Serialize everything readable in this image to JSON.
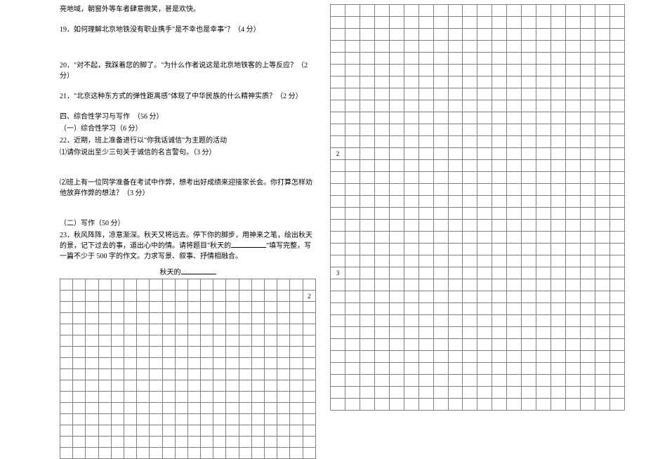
{
  "left": {
    "top_line": "亮地域，朝窗外等车者肆意微笑，甚是欢快。",
    "q19": "19．如何理解北京地铁没有职业携手\"是不幸也是幸事\"？（4 分）",
    "q20": "20．\"对不起，我踩着您的脚了。\"为什么作者说这是北京地铁客的上等反应？（2 分）",
    "q21": "21．\"北京这种东方式的弹性距离感\"体现了中华民族的什么精神实质？（2 分）",
    "sec4": "四、综合性学习与写作　（56 分）",
    "sec4_1": "（一）综合性学习（6 分）",
    "q22": "22．近期，班上准备进行以\"你我话诚信\"为主题的活动",
    "q22_1": "⑴请你说出至少三句关于诚信的名言警句。（3 分）",
    "q22_2": "⑵班上有一位同学准备在考试中作弊，想考出好成绩来迎接家长会。你打算怎样劝他放弃作弊的想法？（3 分）",
    "sec4_2": "（二）写作（50 分）",
    "q23_a": "23．秋风阵阵，凉意渐深。秋天又将远去。停下你的脚步，用神来之笔，绘出秋天的景，记下过去的事，道出心中的情。请将题目\"秋天的",
    "q23_b": "\"填写完整，写一篇不少于 500 字的作文。力求写景、叙事、抒情相融合。",
    "grid_title_prefix": "秋天的",
    "grid": {
      "cols": 20,
      "rows": 16,
      "marker_row": 1,
      "marker_text": "2"
    }
  },
  "right": {
    "grid": {
      "cols": 20,
      "rows": 34,
      "markers": [
        {
          "row": 12,
          "text": "2"
        },
        {
          "row": 22,
          "text": "3"
        }
      ]
    }
  },
  "colors": {
    "grid_border": "#808080",
    "text": "#000000",
    "bg": "#ffffff"
  }
}
